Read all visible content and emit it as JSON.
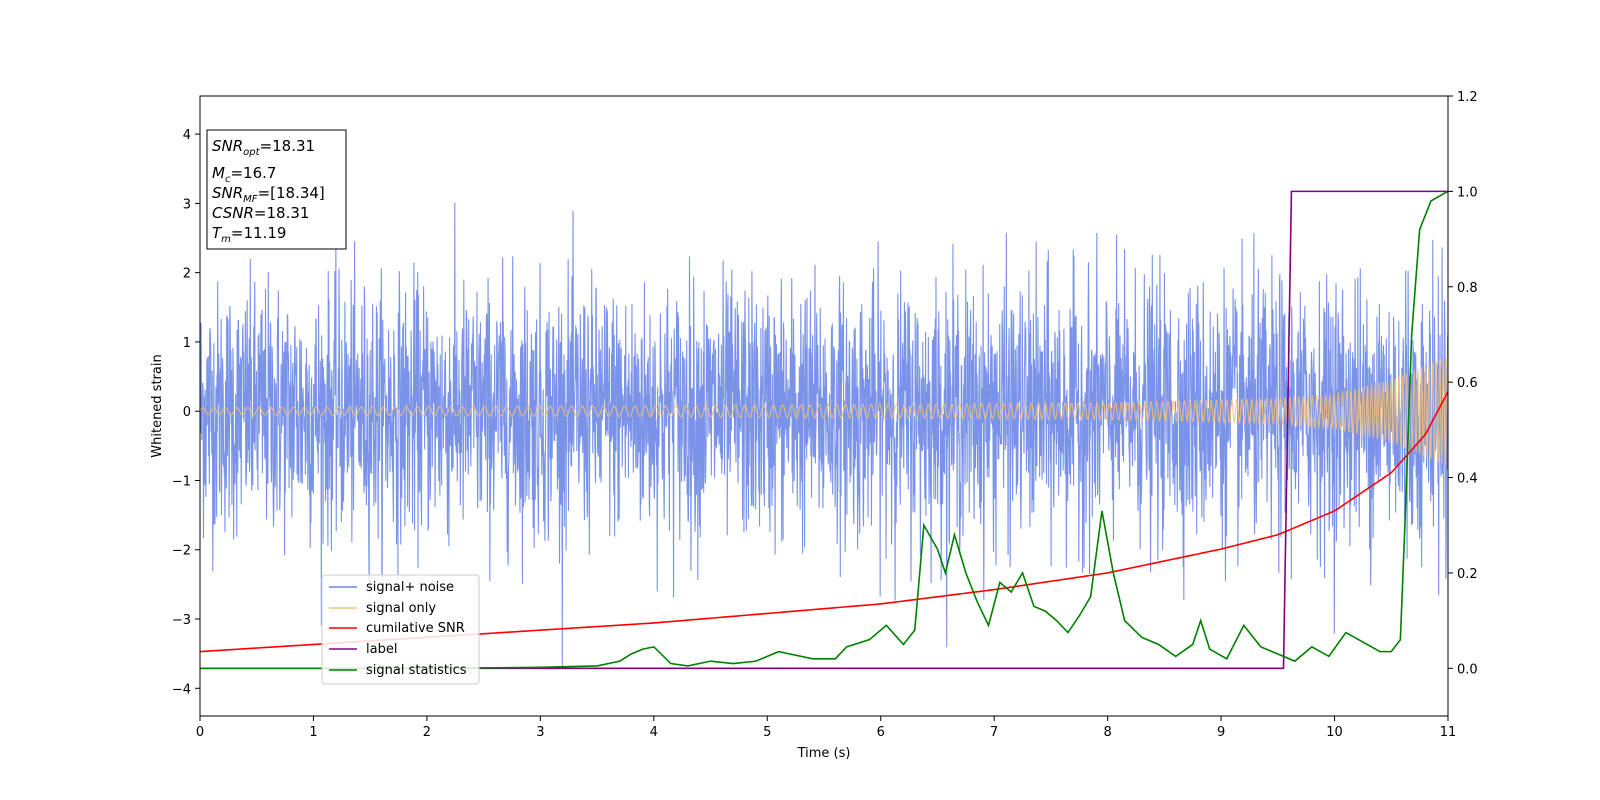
{
  "chart_data": {
    "type": "line",
    "xlabel": "Time (s)",
    "ylabel": "Whitened strain",
    "xlim": [
      0,
      11
    ],
    "ylim": [
      -4.4,
      4.55
    ],
    "y2lim": [
      -0.1,
      1.2
    ],
    "x_ticks": [
      "0",
      "1",
      "2",
      "3",
      "4",
      "5",
      "6",
      "7",
      "8",
      "9",
      "10",
      "11"
    ],
    "y_ticks": [
      "−4",
      "−3",
      "−2",
      "−1",
      "0",
      "1",
      "2",
      "3",
      "4"
    ],
    "y2_ticks": [
      "0.0",
      "0.2",
      "0.4",
      "0.6",
      "0.8",
      "1.0",
      "1.2"
    ],
    "info_box": {
      "snr_opt": {
        "base": "SNR",
        "sub": "opt",
        "value": "=18.31"
      },
      "mc": {
        "base": "M",
        "sub": "c",
        "value": "=16.7"
      },
      "snr_mf": {
        "base": "SNR",
        "sub": "MF",
        "value": "=[18.34]"
      },
      "csnr": {
        "base": "CSNR",
        "value": "=18.31"
      },
      "tm": {
        "base": "T",
        "sub": "m",
        "value": "=11.19"
      }
    },
    "legend": {
      "placement": "lower-left",
      "items": [
        {
          "label": "signal+ noise",
          "color": "#6b87e6"
        },
        {
          "label": "signal only",
          "color": "#f5c078"
        },
        {
          "label": "cumilative SNR",
          "color": "#ff0000"
        },
        {
          "label": "label",
          "color": "#800080"
        },
        {
          "label": "signal statistics",
          "color": "#008000"
        }
      ]
    },
    "series": [
      {
        "name": "signal+ noise",
        "axis": "left",
        "color": "#6b87e6",
        "kind": "noise",
        "sigma": 0.9,
        "peak_max": 4.0,
        "peak_min": -3.95
      },
      {
        "name": "signal only",
        "axis": "left",
        "color": "#f5c078",
        "kind": "chirp",
        "envelope": [
          [
            0,
            0.05
          ],
          [
            4,
            0.08
          ],
          [
            8,
            0.12
          ],
          [
            9.5,
            0.18
          ],
          [
            10,
            0.25
          ],
          [
            10.5,
            0.45
          ],
          [
            11,
            0.8
          ]
        ]
      },
      {
        "name": "cumilative SNR",
        "axis": "right",
        "color": "#ff0000",
        "points": [
          [
            0,
            0.035
          ],
          [
            2,
            0.065
          ],
          [
            4,
            0.095
          ],
          [
            6,
            0.135
          ],
          [
            7,
            0.165
          ],
          [
            8,
            0.2
          ],
          [
            9,
            0.25
          ],
          [
            9.5,
            0.28
          ],
          [
            10,
            0.33
          ],
          [
            10.5,
            0.41
          ],
          [
            10.8,
            0.49
          ],
          [
            11,
            0.58
          ]
        ]
      },
      {
        "name": "label",
        "axis": "right",
        "color": "#800080",
        "points": [
          [
            0,
            0.0
          ],
          [
            9.55,
            0.0
          ],
          [
            9.62,
            1.0
          ],
          [
            11,
            1.0
          ]
        ]
      },
      {
        "name": "signal statistics",
        "axis": "right",
        "color": "#008000",
        "points": [
          [
            0,
            0.0
          ],
          [
            1,
            0.0
          ],
          [
            2,
            0.0
          ],
          [
            3,
            0.002
          ],
          [
            3.3,
            0.004
          ],
          [
            3.5,
            0.005
          ],
          [
            3.7,
            0.015
          ],
          [
            3.8,
            0.03
          ],
          [
            3.9,
            0.04
          ],
          [
            4.0,
            0.045
          ],
          [
            4.15,
            0.01
          ],
          [
            4.3,
            0.005
          ],
          [
            4.5,
            0.015
          ],
          [
            4.7,
            0.01
          ],
          [
            4.9,
            0.015
          ],
          [
            5.1,
            0.035
          ],
          [
            5.2,
            0.03
          ],
          [
            5.4,
            0.02
          ],
          [
            5.6,
            0.02
          ],
          [
            5.7,
            0.045
          ],
          [
            5.9,
            0.06
          ],
          [
            6.05,
            0.09
          ],
          [
            6.2,
            0.05
          ],
          [
            6.3,
            0.08
          ],
          [
            6.38,
            0.3
          ],
          [
            6.5,
            0.25
          ],
          [
            6.57,
            0.2
          ],
          [
            6.65,
            0.28
          ],
          [
            6.75,
            0.2
          ],
          [
            6.85,
            0.14
          ],
          [
            6.95,
            0.09
          ],
          [
            7.05,
            0.18
          ],
          [
            7.15,
            0.16
          ],
          [
            7.25,
            0.2
          ],
          [
            7.35,
            0.13
          ],
          [
            7.45,
            0.12
          ],
          [
            7.55,
            0.1
          ],
          [
            7.65,
            0.075
          ],
          [
            7.75,
            0.11
          ],
          [
            7.85,
            0.15
          ],
          [
            7.95,
            0.33
          ],
          [
            8.05,
            0.2
          ],
          [
            8.15,
            0.1
          ],
          [
            8.3,
            0.065
          ],
          [
            8.45,
            0.05
          ],
          [
            8.6,
            0.025
          ],
          [
            8.75,
            0.05
          ],
          [
            8.82,
            0.1
          ],
          [
            8.9,
            0.04
          ],
          [
            9.05,
            0.02
          ],
          [
            9.2,
            0.09
          ],
          [
            9.35,
            0.045
          ],
          [
            9.5,
            0.03
          ],
          [
            9.65,
            0.015
          ],
          [
            9.8,
            0.045
          ],
          [
            9.95,
            0.025
          ],
          [
            10.1,
            0.075
          ],
          [
            10.25,
            0.055
          ],
          [
            10.4,
            0.035
          ],
          [
            10.5,
            0.035
          ],
          [
            10.58,
            0.06
          ],
          [
            10.62,
            0.3
          ],
          [
            10.68,
            0.7
          ],
          [
            10.75,
            0.92
          ],
          [
            10.85,
            0.98
          ],
          [
            11,
            1.0
          ]
        ]
      }
    ]
  }
}
